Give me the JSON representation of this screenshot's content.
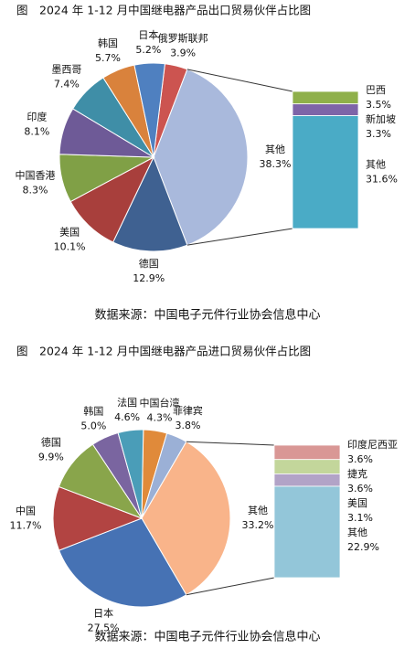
{
  "chart_data": [
    {
      "type": "pie",
      "title": "图　2024 年 1-12 月中国继电器产品出口贸易伙伴占比图",
      "source": "数据来源：中国电子元件行业协会信息中心",
      "categories": [
        "俄罗斯联邦",
        "其他",
        "德国",
        "美国",
        "中国香港",
        "印度",
        "墨西哥",
        "韩国",
        "日本"
      ],
      "values": [
        3.9,
        38.3,
        12.9,
        10.1,
        8.3,
        8.1,
        7.4,
        5.7,
        5.2
      ],
      "value_labels": [
        "3.9%",
        "38.3%",
        "12.9%",
        "10.1%",
        "8.3%",
        "8.1%",
        "7.4%",
        "5.7%",
        "5.2%"
      ],
      "colors": [
        "#cc5450",
        "#a9b9dc",
        "#3f6191",
        "#a83f3c",
        "#80a046",
        "#6e5a97",
        "#3f8ea7",
        "#d9823c",
        "#4f80c0"
      ],
      "breakdown": {
        "categories": [
          "巴西",
          "新加坡",
          "其他"
        ],
        "values": [
          3.5,
          3.3,
          31.6
        ],
        "value_labels": [
          "3.5%",
          "3.3%",
          "31.6%"
        ],
        "colors": [
          "#8fb04a",
          "#7e64a8",
          "#4aabc6"
        ]
      }
    },
    {
      "type": "pie",
      "title": "图　2024 年 1-12 月中国继电器产品进口贸易伙伴占比图",
      "source": "数据来源：中国电子元件行业协会信息中心",
      "categories": [
        "中国台湾",
        "菲律宾",
        "其他",
        "日本",
        "中国",
        "德国",
        "韩国",
        "法国"
      ],
      "values": [
        4.3,
        3.8,
        33.2,
        27.5,
        11.7,
        9.9,
        5.0,
        4.6
      ],
      "value_labels": [
        "4.3%",
        "3.8%",
        "33.2%",
        "27.5%",
        "11.7%",
        "9.9%",
        "5.0%",
        "4.6%"
      ],
      "colors": [
        "#e08a3a",
        "#9bb0d6",
        "#f9b48a",
        "#4672b4",
        "#b24442",
        "#89a54b",
        "#7a65a0",
        "#4a9db8"
      ],
      "breakdown": {
        "categories": [
          "印度尼西亚",
          "捷克",
          "美国",
          "其他"
        ],
        "values": [
          3.6,
          3.6,
          3.1,
          22.9
        ],
        "value_labels": [
          "3.6%",
          "3.6%",
          "3.1%",
          "22.9%"
        ],
        "colors": [
          "#d99795",
          "#c3d69b",
          "#b2a3c7",
          "#93c6d9"
        ]
      }
    }
  ]
}
